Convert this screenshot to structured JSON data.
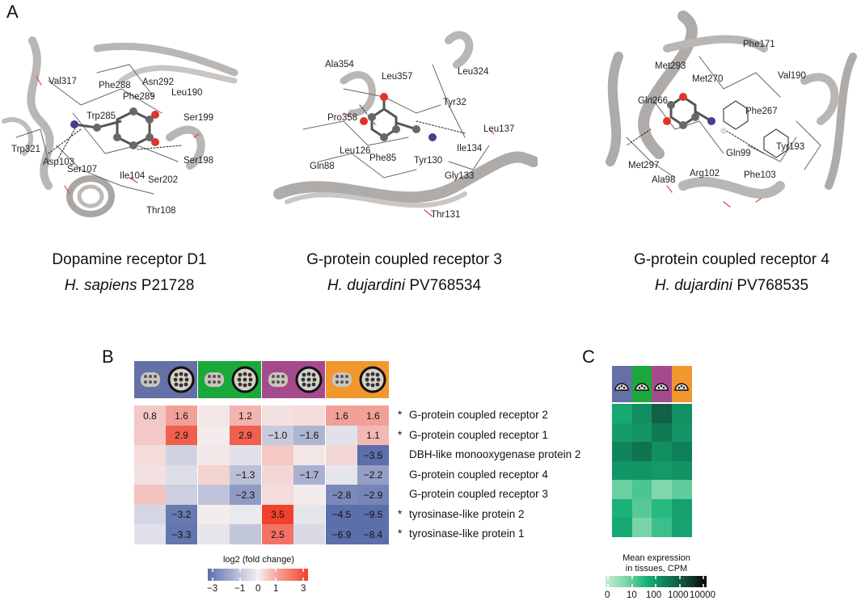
{
  "panels": {
    "a": "A",
    "b": "B",
    "c": "C"
  },
  "structures": [
    {
      "title": "Dopamine receptor D1",
      "species": "H. sapiens",
      "accession": "P21728",
      "residues": [
        "Val317",
        "Phe288",
        "Asn292",
        "Phe289",
        "Leu190",
        "Trp285",
        "Ser199",
        "Trp321",
        "Asp103",
        "Ser198",
        "Ser107",
        "Ile104",
        "Ser202",
        "Thr108"
      ]
    },
    {
      "title": "G-protein coupled receptor 3",
      "species": "H. dujardini",
      "accession": "PV768534",
      "residues": [
        "Ala354",
        "Leu357",
        "Leu324",
        "Tyr32",
        "Pro358",
        "Leu137",
        "Ile134",
        "Leu126",
        "Phe85",
        "Gln88",
        "Tyr130",
        "Gly133",
        "Thr131"
      ]
    },
    {
      "title": "G-protein coupled receptor  4",
      "species": "H. dujardini",
      "accession": "PV768535",
      "residues": [
        "Phe171",
        "Met293",
        "Met270",
        "Val190",
        "Gln266",
        "Phe267",
        "Tyr193",
        "Gln99",
        "Met297",
        "Arg102",
        "Ala98",
        "Phe103"
      ]
    }
  ],
  "heatmap_b": {
    "rows": [
      {
        "label": "G-protein coupled receptor 2",
        "star": "*"
      },
      {
        "label": "G-protein coupled receptor 1",
        "star": "*"
      },
      {
        "label": "DBH-like monooxygenase protein 2",
        "star": ""
      },
      {
        "label": "G-protein coupled receptor 4",
        "star": ""
      },
      {
        "label": "G-protein coupled receptor 3",
        "star": ""
      },
      {
        "label": "tyrosinase-like protein 2",
        "star": "*"
      },
      {
        "label": "tyrosinase-like protein 1",
        "star": "*"
      }
    ],
    "group_colors": [
      "#6470a6",
      "#1aa83a",
      "#a64a8e",
      "#f2972d"
    ],
    "values": [
      [
        0.8,
        1.6,
        0.2,
        1.2,
        0.3,
        0.4,
        1.6,
        1.6
      ],
      [
        0.8,
        2.9,
        0.1,
        2.9,
        -1.0,
        -1.6,
        -0.4,
        1.1
      ],
      [
        0.4,
        -0.8,
        0.2,
        -0.4,
        0.8,
        0.2,
        0.5,
        -3.5
      ],
      [
        0.3,
        -0.5,
        0.6,
        -1.3,
        0.5,
        -1.7,
        -0.3,
        -2.2
      ],
      [
        0.9,
        -0.9,
        -1.2,
        -2.3,
        0.4,
        0.1,
        -2.8,
        -2.9
      ],
      [
        -0.7,
        -3.2,
        0.1,
        -0.2,
        3.5,
        -0.3,
        -4.5,
        -9.5
      ],
      [
        -0.4,
        -3.3,
        -0.3,
        -1.1,
        2.5,
        -0.6,
        -6.9,
        -8.4
      ]
    ],
    "labels": [
      [
        "0.8",
        "1.6",
        "",
        "1.2",
        "",
        "",
        "1.6",
        "1.6"
      ],
      [
        "",
        "2.9",
        "",
        "2.9",
        "−1.0",
        "−1.6",
        "",
        "1.1"
      ],
      [
        "",
        "",
        "",
        "",
        "",
        "",
        "",
        "−3.5"
      ],
      [
        "",
        "",
        "",
        "−1.3",
        "",
        "−1.7",
        "",
        "−2.2"
      ],
      [
        "",
        "",
        "",
        "−2.3",
        "",
        "",
        "−2.8",
        "−2.9"
      ],
      [
        "",
        "−3.2",
        "",
        "",
        "3.5",
        "",
        "−4.5",
        "−9.5"
      ],
      [
        "",
        "−3.3",
        "",
        "",
        "2.5",
        "",
        "−6.9",
        "−8.4"
      ]
    ],
    "legend_title": "log2 (fold change)",
    "legend_ticks": [
      "−3",
      "−1",
      "0",
      "1",
      "3"
    ]
  },
  "heatmap_c": {
    "group_colors": [
      "#6470a6",
      "#1aa83a",
      "#a64a8e",
      "#f2972d"
    ],
    "cpm": [
      [
        60,
        150,
        800,
        140
      ],
      [
        90,
        120,
        300,
        110
      ],
      [
        200,
        400,
        150,
        250
      ],
      [
        110,
        120,
        100,
        130
      ],
      [
        8,
        15,
        5,
        10
      ],
      [
        40,
        12,
        30,
        80
      ],
      [
        60,
        6,
        20,
        70
      ]
    ],
    "legend_title_1": "Mean expression",
    "legend_title_2": "in tissues, CPM",
    "legend_ticks": [
      "0",
      "10",
      "100",
      "1000",
      "10000"
    ]
  }
}
